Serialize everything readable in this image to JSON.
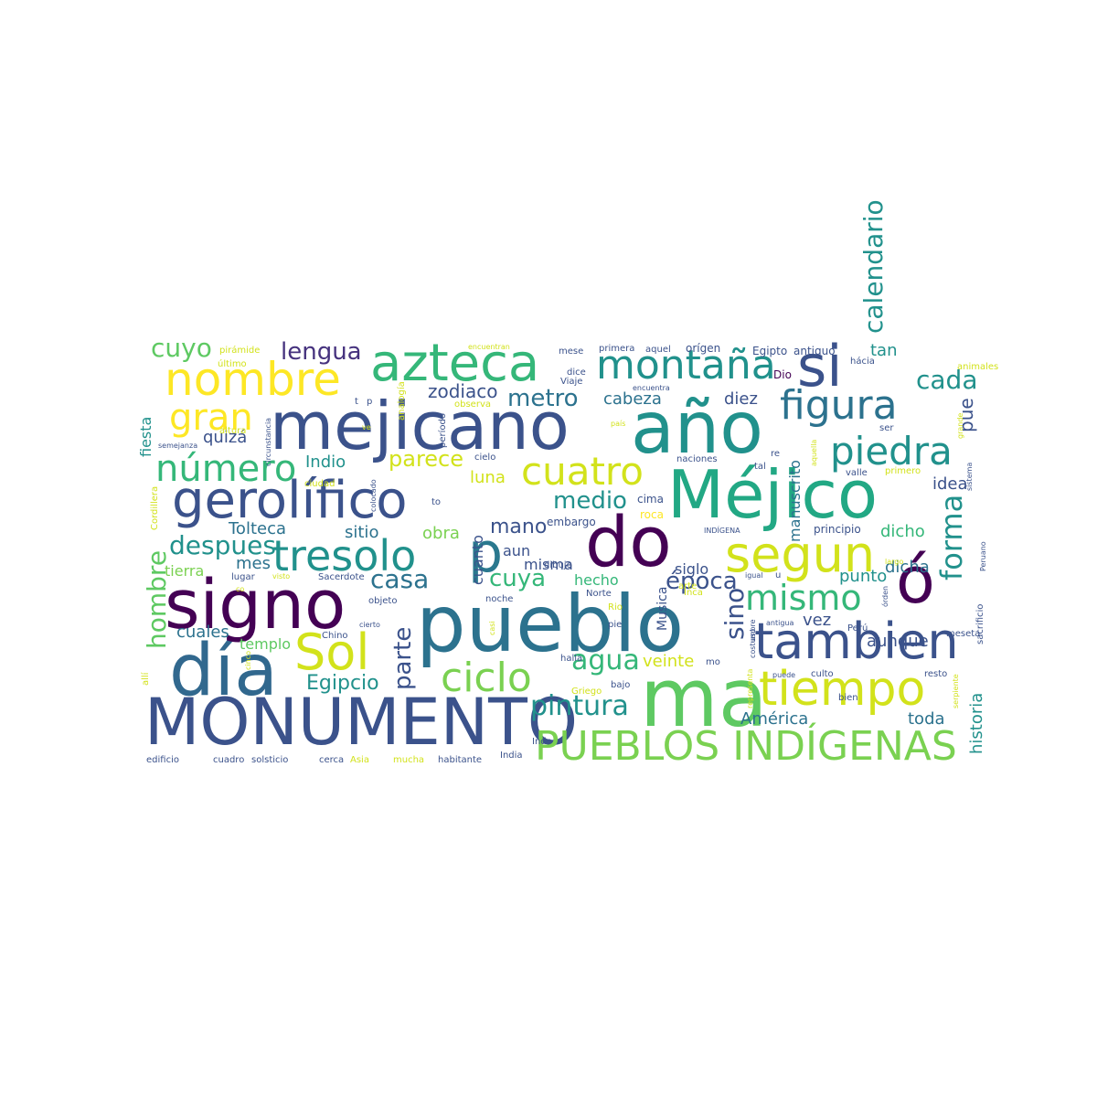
{
  "words": [
    {
      "text": "mejicano",
      "color": "#3b528b"
    },
    {
      "text": "año",
      "color": "#21918c"
    },
    {
      "text": "Méjico",
      "color": "#22a884"
    },
    {
      "text": "pueblo",
      "color": "#2c728e"
    },
    {
      "text": "MONUMENTO",
      "color": "#3b528b"
    },
    {
      "text": "día",
      "color": "#31688e"
    },
    {
      "text": "ma",
      "color": "#5ec962"
    },
    {
      "text": "signo",
      "color": "#440154"
    },
    {
      "text": "do",
      "color": "#440154"
    },
    {
      "text": "azteca",
      "color": "#35b779"
    },
    {
      "text": "nombre",
      "color": "#fde725"
    },
    {
      "text": "gerolífico",
      "color": "#3b528b"
    },
    {
      "text": "PUEBLOS INDÍGENAS",
      "color": "#7ad151"
    },
    {
      "text": "ó",
      "color": "#440154"
    },
    {
      "text": "si",
      "color": "#3b528b"
    },
    {
      "text": "tambien",
      "color": "#3b528b"
    },
    {
      "text": "tiempo",
      "color": "#d2e21b"
    },
    {
      "text": "Sol",
      "color": "#d2e21b"
    },
    {
      "text": "segun",
      "color": "#d2e21b"
    },
    {
      "text": "p",
      "color": "#2a788e"
    },
    {
      "text": "montaña",
      "color": "#21918c"
    },
    {
      "text": "tresolo",
      "color": "#21918c"
    },
    {
      "text": "figura",
      "color": "#2c728e"
    },
    {
      "text": "piedra",
      "color": "#21918c"
    },
    {
      "text": "número",
      "color": "#35b779"
    },
    {
      "text": "cuatro",
      "color": "#d2e21b"
    },
    {
      "text": "ciclo",
      "color": "#7ad151"
    },
    {
      "text": "forma",
      "color": "#21918c"
    },
    {
      "text": "mismo",
      "color": "#35b779"
    },
    {
      "text": "gran",
      "color": "#fde725"
    },
    {
      "text": "cuyo",
      "color": "#5ec962"
    },
    {
      "text": "lengua",
      "color": "#46327e"
    },
    {
      "text": "pintura",
      "color": "#21918c"
    },
    {
      "text": "agua",
      "color": "#35b779"
    },
    {
      "text": "cuya",
      "color": "#35b779"
    },
    {
      "text": "medio",
      "color": "#21918c"
    },
    {
      "text": "casa",
      "color": "#2c728e"
    },
    {
      "text": "parte",
      "color": "#3b528b"
    },
    {
      "text": "despues",
      "color": "#21918c"
    },
    {
      "text": "sino",
      "color": "#3b528b"
    },
    {
      "text": "época",
      "color": "#3b528b"
    },
    {
      "text": "hombre",
      "color": "#5ec962"
    },
    {
      "text": "metro",
      "color": "#2c728e"
    },
    {
      "text": "mano",
      "color": "#3b528b"
    },
    {
      "text": "cada",
      "color": "#21918c"
    },
    {
      "text": "tan",
      "color": "#21918c"
    },
    {
      "text": "calendario",
      "color": "#21918c"
    },
    {
      "text": "parece",
      "color": "#d2e21b"
    },
    {
      "text": "zodiaco",
      "color": "#3b528b"
    },
    {
      "text": "cabeza",
      "color": "#2c728e"
    },
    {
      "text": "diez",
      "color": "#3b528b"
    },
    {
      "text": "Egipcio",
      "color": "#21918c"
    },
    {
      "text": "Tolteca",
      "color": "#2c728e"
    },
    {
      "text": "quizá",
      "color": "#3b528b"
    },
    {
      "text": "fiesta",
      "color": "#21918c"
    },
    {
      "text": "Indio",
      "color": "#21918c"
    },
    {
      "text": "luna",
      "color": "#d2e21b"
    },
    {
      "text": "sitio",
      "color": "#2c728e"
    },
    {
      "text": "obra",
      "color": "#7ad151"
    },
    {
      "text": "aun",
      "color": "#3b528b"
    },
    {
      "text": "cuales",
      "color": "#2c728e"
    },
    {
      "text": "templo",
      "color": "#5ec962"
    },
    {
      "text": "mes",
      "color": "#2c728e"
    },
    {
      "text": "tierra",
      "color": "#7ad151"
    },
    {
      "text": "siglo",
      "color": "#3b528b"
    },
    {
      "text": "misma",
      "color": "#3b528b"
    },
    {
      "text": "hecho",
      "color": "#35b779"
    },
    {
      "text": "punto",
      "color": "#21918c"
    },
    {
      "text": "dicho",
      "color": "#35b779"
    },
    {
      "text": "dicha",
      "color": "#2c728e"
    },
    {
      "text": "idea",
      "color": "#3b528b"
    },
    {
      "text": "manuscrito",
      "color": "#2c728e"
    },
    {
      "text": "pue",
      "color": "#3b528b"
    },
    {
      "text": "vez",
      "color": "#3b528b"
    },
    {
      "text": "aunque",
      "color": "#3b528b"
    },
    {
      "text": "veinte",
      "color": "#d2e21b"
    },
    {
      "text": "América",
      "color": "#2c728e"
    },
    {
      "text": "toda",
      "color": "#2c728e"
    },
    {
      "text": "historia",
      "color": "#21918c"
    },
    {
      "text": "cuanto",
      "color": "#3b528b"
    },
    {
      "text": "Musica",
      "color": "#3b528b"
    },
    {
      "text": "embargo",
      "color": "#3b528b"
    },
    {
      "text": "cima",
      "color": "#3b528b"
    },
    {
      "text": "roca",
      "color": "#fde725"
    },
    {
      "text": "principio",
      "color": "#3b528b"
    },
    {
      "text": "to",
      "color": "#3b528b"
    },
    {
      "text": "cielo",
      "color": "#3b528b"
    },
    {
      "text": "tal",
      "color": "#3b528b"
    },
    {
      "text": "re",
      "color": "#3b528b"
    },
    {
      "text": "valle",
      "color": "#3b528b"
    },
    {
      "text": "primero",
      "color": "#d2e21b"
    },
    {
      "text": "naciones",
      "color": "#3b528b"
    },
    {
      "text": "Dio",
      "color": "#440154"
    },
    {
      "text": "Egipto",
      "color": "#3b528b"
    },
    {
      "text": "antiguo",
      "color": "#3b528b"
    },
    {
      "text": "orígen",
      "color": "#3b528b"
    },
    {
      "text": "aquel",
      "color": "#3b528b"
    },
    {
      "text": "primera",
      "color": "#3b528b"
    },
    {
      "text": "mese",
      "color": "#3b528b"
    },
    {
      "text": "encuentran",
      "color": "#d2e21b"
    },
    {
      "text": "pirámide",
      "color": "#d2e21b"
    },
    {
      "text": "último",
      "color": "#d2e21b"
    },
    {
      "text": "Viaje",
      "color": "#3b528b"
    },
    {
      "text": "dice",
      "color": "#3b528b"
    },
    {
      "text": "observa",
      "color": "#d2e21b"
    },
    {
      "text": "encuentra",
      "color": "#3b528b"
    },
    {
      "text": "país",
      "color": "#d2e21b"
    },
    {
      "text": "período",
      "color": "#3b528b"
    },
    {
      "text": "analogía",
      "color": "#d2e21b"
    },
    {
      "text": "ve",
      "color": "#d2e21b"
    },
    {
      "text": "altura",
      "color": "#d2e21b"
    },
    {
      "text": "ciudad",
      "color": "#d2e21b"
    },
    {
      "text": "semejanza",
      "color": "#3b528b"
    },
    {
      "text": "circunstancia",
      "color": "#3b528b"
    },
    {
      "text": "colocado",
      "color": "#3b528b"
    },
    {
      "text": "Cordillera",
      "color": "#d2e21b"
    },
    {
      "text": "lugar",
      "color": "#3b528b"
    },
    {
      "text": "visto",
      "color": "#d2e21b"
    },
    {
      "text": "Sacerdote",
      "color": "#3b528b"
    },
    {
      "text": "objeto",
      "color": "#3b528b"
    },
    {
      "text": "noche",
      "color": "#3b528b"
    },
    {
      "text": "Norte",
      "color": "#3b528b"
    },
    {
      "text": "Inca",
      "color": "#d2e21b"
    },
    {
      "text": "Rio",
      "color": "#d2e21b"
    },
    {
      "text": "dibujo",
      "color": "#3b528b"
    },
    {
      "text": "arte",
      "color": "#d2e21b"
    },
    {
      "text": "INDÍGENA",
      "color": "#3b528b"
    },
    {
      "text": "Perú",
      "color": "#3b528b"
    },
    {
      "text": "meseta",
      "color": "#3b528b"
    },
    {
      "text": "sacrificio",
      "color": "#3b528b"
    },
    {
      "text": "Peruano",
      "color": "#3b528b"
    },
    {
      "text": "largo",
      "color": "#d2e21b"
    },
    {
      "text": "sistema",
      "color": "#3b528b"
    },
    {
      "text": "grande",
      "color": "#d2e21b"
    },
    {
      "text": "ser",
      "color": "#3b528b"
    },
    {
      "text": "aquella",
      "color": "#d2e21b"
    },
    {
      "text": "hácia",
      "color": "#3b528b"
    },
    {
      "text": "animales",
      "color": "#d2e21b"
    },
    {
      "text": "costumbre",
      "color": "#3b528b"
    },
    {
      "text": "uso",
      "color": "#3b528b"
    },
    {
      "text": "antigua",
      "color": "#3b528b"
    },
    {
      "text": "igual",
      "color": "#3b528b"
    },
    {
      "text": "órden",
      "color": "#3b528b"
    },
    {
      "text": "culto",
      "color": "#3b528b"
    },
    {
      "text": "resto",
      "color": "#3b528b"
    },
    {
      "text": "puede",
      "color": "#3b528b"
    },
    {
      "text": "representa",
      "color": "#d2e21b"
    },
    {
      "text": "serpiente",
      "color": "#d2e21b"
    },
    {
      "text": "bien",
      "color": "#3b528b"
    },
    {
      "text": "Chino",
      "color": "#3b528b"
    },
    {
      "text": "cierto",
      "color": "#3b528b"
    },
    {
      "text": "casi",
      "color": "#d2e21b"
    },
    {
      "text": "halla",
      "color": "#3b528b"
    },
    {
      "text": "bajo",
      "color": "#3b528b"
    },
    {
      "text": "Griego",
      "color": "#d2e21b"
    },
    {
      "text": "pie",
      "color": "#3b528b"
    },
    {
      "text": "mo",
      "color": "#3b528b"
    },
    {
      "text": "allí",
      "color": "#d2e21b"
    },
    {
      "text": "cinco",
      "color": "#d2e21b"
    },
    {
      "text": "co",
      "color": "#d2e21b"
    },
    {
      "text": "Indo",
      "color": "#3b528b"
    },
    {
      "text": "India",
      "color": "#3b528b"
    },
    {
      "text": "edificio",
      "color": "#3b528b"
    },
    {
      "text": "cuadro",
      "color": "#3b528b"
    },
    {
      "text": "solsticio",
      "color": "#3b528b"
    },
    {
      "text": "cerca",
      "color": "#3b528b"
    },
    {
      "text": "Asia",
      "color": "#d2e21b"
    },
    {
      "text": "mucha",
      "color": "#d2e21b"
    },
    {
      "text": "habitante",
      "color": "#3b528b"
    },
    {
      "text": "t",
      "color": "#3b528b"
    },
    {
      "text": "p",
      "color": "#3b528b"
    },
    {
      "text": "u",
      "color": "#3b528b"
    }
  ]
}
